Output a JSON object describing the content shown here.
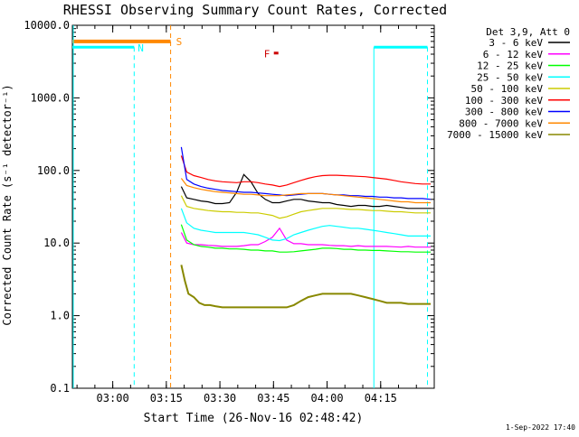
{
  "chart_data": {
    "type": "line",
    "title": "RHESSI Observing Summary Count Rates, Corrected",
    "xlabel": "Start Time (26-Nov-16 02:48:42)",
    "ylabel": "Corrected Count Rate (s⁻¹ detector⁻¹)",
    "yscale": "log",
    "ylim": [
      0.1,
      10000.0
    ],
    "xlim_minutes_after_start": [
      0,
      101.3
    ],
    "y_ticks": [
      {
        "value": 0.1,
        "label": "0.1"
      },
      {
        "value": 1.0,
        "label": "1.0"
      },
      {
        "value": 10.0,
        "label": "10.0"
      },
      {
        "value": 100.0,
        "label": "100.0"
      },
      {
        "value": 1000.0,
        "label": "1000.0"
      },
      {
        "value": 10000.0,
        "label": "10000.0"
      }
    ],
    "x_ticks": [
      {
        "minute": 11.3,
        "label": "03:00"
      },
      {
        "minute": 26.3,
        "label": "03:15"
      },
      {
        "minute": 41.3,
        "label": "03:30"
      },
      {
        "minute": 56.3,
        "label": "03:45"
      },
      {
        "minute": 71.3,
        "label": "04:00"
      },
      {
        "minute": 86.3,
        "label": "04:15"
      }
    ],
    "legend_title": "Det 3,9, Att 0",
    "legend_position": "right",
    "series": [
      {
        "name": "3 - 6 keV",
        "color": "#000000",
        "x": [
          30.5,
          32,
          34,
          36,
          38,
          40,
          42,
          44,
          46,
          48,
          50,
          52,
          54,
          56,
          58,
          60,
          62,
          64,
          66,
          68,
          70,
          72,
          74,
          76,
          78,
          80,
          82,
          84,
          86,
          88,
          90,
          92,
          94,
          96,
          98,
          100.3
        ],
        "y": [
          60,
          42,
          40,
          38,
          37,
          35,
          35,
          36,
          50,
          88,
          70,
          48,
          40,
          36,
          36,
          38,
          40,
          40,
          38,
          37,
          36,
          36,
          34,
          33,
          32,
          33,
          33,
          32,
          32,
          33,
          32,
          31,
          30,
          30,
          30,
          30
        ]
      },
      {
        "name": "6 - 12 keV",
        "color": "#ff00ff",
        "x": [
          30.5,
          32,
          34,
          36,
          38,
          40,
          42,
          44,
          46,
          48,
          50,
          52,
          54,
          56,
          58,
          60,
          62,
          64,
          66,
          68,
          70,
          72,
          74,
          76,
          78,
          80,
          82,
          84,
          86,
          88,
          90,
          92,
          94,
          96,
          98,
          100.3
        ],
        "y": [
          14,
          10,
          9.5,
          9.5,
          9.3,
          9.2,
          9.0,
          9.0,
          9.0,
          9.2,
          9.5,
          9.5,
          10.5,
          12,
          16,
          11,
          9.8,
          9.8,
          9.5,
          9.5,
          9.5,
          9.3,
          9.2,
          9.2,
          9.0,
          9.2,
          9.0,
          9.0,
          9.0,
          9.0,
          8.9,
          8.8,
          9.0,
          8.8,
          8.8,
          8.8
        ]
      },
      {
        "name": "12 - 25 keV",
        "color": "#00ff00",
        "x": [
          30.5,
          32,
          34,
          36,
          38,
          40,
          42,
          44,
          46,
          48,
          50,
          52,
          54,
          56,
          58,
          60,
          62,
          64,
          66,
          68,
          70,
          72,
          74,
          76,
          78,
          80,
          82,
          84,
          86,
          88,
          90,
          92,
          94,
          96,
          98,
          100.3
        ],
        "y": [
          18,
          11,
          9.5,
          9.0,
          8.8,
          8.5,
          8.5,
          8.3,
          8.3,
          8.2,
          8.0,
          8.0,
          7.8,
          7.8,
          7.5,
          7.5,
          7.6,
          7.8,
          8.0,
          8.2,
          8.5,
          8.5,
          8.4,
          8.2,
          8.2,
          8.0,
          8.0,
          7.9,
          7.9,
          7.8,
          7.7,
          7.6,
          7.6,
          7.5,
          7.5,
          7.5
        ]
      },
      {
        "name": "25 - 50 keV",
        "color": "#00ffff",
        "x": [
          30.5,
          32,
          34,
          36,
          38,
          40,
          42,
          44,
          46,
          48,
          50,
          52,
          54,
          56,
          58,
          60,
          62,
          64,
          66,
          68,
          70,
          72,
          74,
          76,
          78,
          80,
          82,
          84,
          86,
          88,
          90,
          92,
          94,
          96,
          98,
          100.3
        ],
        "y": [
          30,
          19,
          16,
          15,
          14.5,
          14,
          14,
          14,
          14,
          14,
          13.5,
          13,
          12,
          11,
          10.8,
          11.5,
          13,
          14,
          15,
          16,
          17,
          17.5,
          17,
          16.5,
          16,
          16,
          15.5,
          15,
          14.5,
          14,
          13.5,
          13,
          12.5,
          12.5,
          12.5,
          12.5
        ]
      },
      {
        "name": "50 - 100 keV",
        "color": "#cccc00",
        "x": [
          30.5,
          32,
          34,
          36,
          38,
          40,
          42,
          44,
          46,
          48,
          50,
          52,
          54,
          56,
          58,
          60,
          62,
          64,
          66,
          68,
          70,
          72,
          74,
          76,
          78,
          80,
          82,
          84,
          86,
          88,
          90,
          92,
          94,
          96,
          98,
          100.3
        ],
        "y": [
          45,
          32,
          30,
          29,
          28,
          27.5,
          27,
          27,
          26.5,
          26.5,
          26,
          26,
          25,
          24,
          22,
          23,
          25,
          27,
          28,
          29,
          30,
          30,
          30,
          29.5,
          29,
          29,
          28.5,
          28,
          28,
          27.5,
          27,
          27,
          26.5,
          26,
          26,
          26
        ]
      },
      {
        "name": "100 - 300 keV",
        "color": "#ff0000",
        "x": [
          30.5,
          32,
          34,
          36,
          38,
          40,
          42,
          44,
          46,
          48,
          50,
          52,
          54,
          56,
          58,
          60,
          62,
          64,
          66,
          68,
          70,
          72,
          74,
          76,
          78,
          80,
          82,
          84,
          86,
          88,
          90,
          92,
          94,
          96,
          98,
          100.3
        ],
        "y": [
          160,
          95,
          85,
          80,
          75,
          72,
          70,
          69,
          68,
          70,
          70,
          68,
          65,
          63,
          60,
          63,
          68,
          73,
          78,
          82,
          85,
          86,
          86,
          85,
          84,
          83,
          82,
          80,
          78,
          76,
          73,
          70,
          68,
          66,
          65,
          65
        ]
      },
      {
        "name": "300 - 800 keV",
        "color": "#0000ff",
        "x": [
          30.5,
          32,
          34,
          36,
          38,
          40,
          42,
          44,
          46,
          48,
          50,
          52,
          54,
          56,
          58,
          60,
          62,
          64,
          66,
          68,
          70,
          72,
          74,
          76,
          78,
          80,
          82,
          84,
          86,
          88,
          90,
          92,
          94,
          96,
          98,
          100.3
        ],
        "y": [
          210,
          75,
          65,
          60,
          57,
          55,
          53,
          52,
          51,
          50,
          50,
          49,
          48,
          47,
          46,
          45,
          46,
          47,
          48,
          48,
          48,
          47,
          46,
          46,
          45,
          45,
          44,
          44,
          43,
          43,
          42,
          42,
          41,
          41,
          41,
          40
        ]
      },
      {
        "name": "800 - 7000 keV",
        "color": "#ff8800",
        "x": [
          30.5,
          32,
          34,
          36,
          38,
          40,
          42,
          44,
          46,
          48,
          50,
          52,
          54,
          56,
          58,
          60,
          62,
          64,
          66,
          68,
          70,
          72,
          74,
          76,
          78,
          80,
          82,
          84,
          86,
          88,
          90,
          92,
          94,
          96,
          98,
          100.3
        ],
        "y": [
          78,
          62,
          58,
          55,
          53,
          51,
          50,
          49,
          48,
          47,
          47,
          46,
          45,
          45,
          45,
          46,
          47,
          48,
          48,
          48,
          48,
          47,
          46,
          45,
          44,
          43,
          42,
          41,
          40,
          39,
          38,
          37,
          37,
          36,
          36,
          36
        ]
      },
      {
        "name": "7000 - 15000 keV",
        "color": "#888800",
        "x": [
          30.5,
          31.5,
          32.5,
          34,
          35.5,
          37,
          38.5,
          40,
          42,
          44,
          46,
          48,
          50,
          52,
          54,
          56,
          58,
          60,
          62,
          64,
          66,
          68,
          70,
          72,
          74,
          76,
          78,
          80,
          82,
          84,
          86,
          88,
          90,
          92,
          94,
          96,
          98,
          100.3
        ],
        "y": [
          5.0,
          3.0,
          2.0,
          1.8,
          1.5,
          1.4,
          1.4,
          1.35,
          1.3,
          1.3,
          1.3,
          1.3,
          1.3,
          1.3,
          1.3,
          1.3,
          1.3,
          1.3,
          1.4,
          1.6,
          1.8,
          1.9,
          2.0,
          2.0,
          2.0,
          2.0,
          2.0,
          1.9,
          1.8,
          1.7,
          1.6,
          1.5,
          1.5,
          1.5,
          1.45,
          1.45,
          1.45,
          1.45
        ]
      }
    ],
    "annotations": [
      {
        "text": "N",
        "color": "#00ffff"
      },
      {
        "text": "S",
        "color": "#ff8800"
      },
      {
        "text": "F",
        "color": "#cc0000"
      }
    ],
    "timestamp": "1-Sep-2022 17:40"
  }
}
